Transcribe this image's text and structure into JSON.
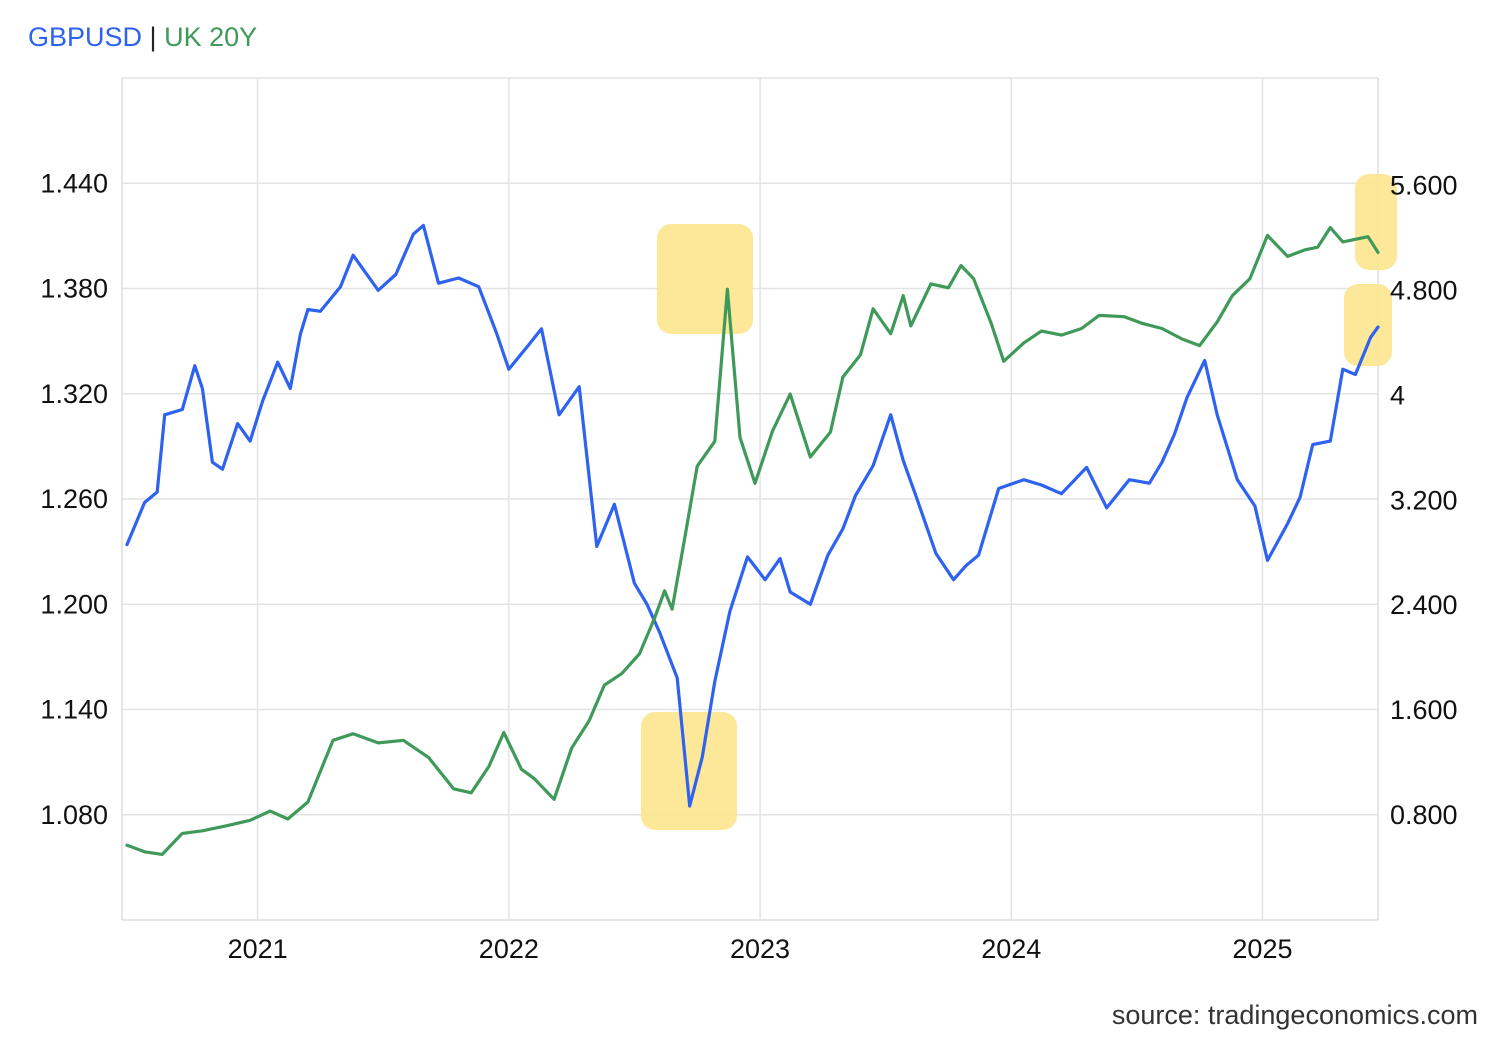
{
  "chart_data": {
    "type": "line",
    "title": "",
    "legend": {
      "placement": "top-left",
      "separator": "|",
      "entries": [
        {
          "label": "GBPUSD",
          "color": "#2e62f0"
        },
        {
          "label": "UK 20Y",
          "color": "#3f9a5a"
        }
      ]
    },
    "source_label": "source: tradingeconomics.com",
    "x_ticks": [
      "2021",
      "2022",
      "2023",
      "2024",
      "2025"
    ],
    "xlim": [
      2020.46,
      2025.46
    ],
    "y_left": {
      "ticks": [
        "1.080",
        "1.140",
        "1.200",
        "1.260",
        "1.320",
        "1.380",
        "1.440"
      ],
      "ylim": [
        1.02,
        1.5
      ]
    },
    "y_right": {
      "ticks": [
        "0.800",
        "1.600",
        "2.400",
        "3.200",
        "4",
        "4.800",
        "5.600"
      ],
      "ylim": [
        0.0,
        6.42
      ]
    },
    "grid": true,
    "highlights": [
      "around the October 2022 peak of UK 20Y and low of GBPUSD",
      "around the latest values of both series"
    ],
    "series": [
      {
        "name": "GBPUSD",
        "axis": "left",
        "color": "#2e62f0",
        "points": [
          [
            2020.48,
            1.234
          ],
          [
            2020.55,
            1.258
          ],
          [
            2020.6,
            1.264
          ],
          [
            2020.63,
            1.308
          ],
          [
            2020.7,
            1.311
          ],
          [
            2020.75,
            1.336
          ],
          [
            2020.78,
            1.323
          ],
          [
            2020.82,
            1.281
          ],
          [
            2020.86,
            1.277
          ],
          [
            2020.92,
            1.303
          ],
          [
            2020.97,
            1.293
          ],
          [
            2021.02,
            1.316
          ],
          [
            2021.08,
            1.338
          ],
          [
            2021.13,
            1.323
          ],
          [
            2021.17,
            1.354
          ],
          [
            2021.2,
            1.368
          ],
          [
            2021.25,
            1.367
          ],
          [
            2021.33,
            1.381
          ],
          [
            2021.38,
            1.399
          ],
          [
            2021.48,
            1.379
          ],
          [
            2021.55,
            1.388
          ],
          [
            2021.62,
            1.411
          ],
          [
            2021.66,
            1.416
          ],
          [
            2021.72,
            1.383
          ],
          [
            2021.8,
            1.386
          ],
          [
            2021.88,
            1.381
          ],
          [
            2021.95,
            1.355
          ],
          [
            2022.0,
            1.334
          ],
          [
            2022.08,
            1.348
          ],
          [
            2022.13,
            1.357
          ],
          [
            2022.2,
            1.308
          ],
          [
            2022.28,
            1.324
          ],
          [
            2022.35,
            1.233
          ],
          [
            2022.42,
            1.257
          ],
          [
            2022.5,
            1.212
          ],
          [
            2022.55,
            1.2
          ],
          [
            2022.6,
            1.184
          ],
          [
            2022.67,
            1.158
          ],
          [
            2022.72,
            1.085
          ],
          [
            2022.77,
            1.113
          ],
          [
            2022.82,
            1.156
          ],
          [
            2022.88,
            1.196
          ],
          [
            2022.95,
            1.227
          ],
          [
            2023.02,
            1.214
          ],
          [
            2023.08,
            1.226
          ],
          [
            2023.12,
            1.207
          ],
          [
            2023.2,
            1.2
          ],
          [
            2023.27,
            1.228
          ],
          [
            2023.33,
            1.243
          ],
          [
            2023.38,
            1.262
          ],
          [
            2023.45,
            1.279
          ],
          [
            2023.52,
            1.308
          ],
          [
            2023.57,
            1.282
          ],
          [
            2023.62,
            1.262
          ],
          [
            2023.7,
            1.229
          ],
          [
            2023.77,
            1.214
          ],
          [
            2023.82,
            1.222
          ],
          [
            2023.87,
            1.228
          ],
          [
            2023.95,
            1.266
          ],
          [
            2024.05,
            1.271
          ],
          [
            2024.12,
            1.268
          ],
          [
            2024.2,
            1.263
          ],
          [
            2024.3,
            1.278
          ],
          [
            2024.38,
            1.255
          ],
          [
            2024.47,
            1.271
          ],
          [
            2024.55,
            1.269
          ],
          [
            2024.6,
            1.281
          ],
          [
            2024.65,
            1.297
          ],
          [
            2024.7,
            1.318
          ],
          [
            2024.77,
            1.339
          ],
          [
            2024.82,
            1.308
          ],
          [
            2024.9,
            1.271
          ],
          [
            2024.97,
            1.256
          ],
          [
            2025.02,
            1.225
          ],
          [
            2025.1,
            1.246
          ],
          [
            2025.15,
            1.261
          ],
          [
            2025.2,
            1.291
          ],
          [
            2025.27,
            1.293
          ],
          [
            2025.32,
            1.334
          ],
          [
            2025.37,
            1.331
          ],
          [
            2025.43,
            1.352
          ],
          [
            2025.46,
            1.358
          ]
        ]
      },
      {
        "name": "UK 20Y",
        "axis": "right",
        "color": "#3f9a5a",
        "points": [
          [
            2020.48,
            0.57
          ],
          [
            2020.55,
            0.52
          ],
          [
            2020.62,
            0.5
          ],
          [
            2020.7,
            0.66
          ],
          [
            2020.78,
            0.68
          ],
          [
            2020.88,
            0.72
          ],
          [
            2020.97,
            0.76
          ],
          [
            2021.05,
            0.83
          ],
          [
            2021.12,
            0.77
          ],
          [
            2021.2,
            0.9
          ],
          [
            2021.3,
            1.37
          ],
          [
            2021.38,
            1.42
          ],
          [
            2021.48,
            1.35
          ],
          [
            2021.58,
            1.37
          ],
          [
            2021.68,
            1.24
          ],
          [
            2021.78,
            1.0
          ],
          [
            2021.85,
            0.97
          ],
          [
            2021.92,
            1.17
          ],
          [
            2021.98,
            1.43
          ],
          [
            2022.05,
            1.15
          ],
          [
            2022.1,
            1.08
          ],
          [
            2022.18,
            0.92
          ],
          [
            2022.25,
            1.31
          ],
          [
            2022.32,
            1.52
          ],
          [
            2022.38,
            1.79
          ],
          [
            2022.45,
            1.88
          ],
          [
            2022.52,
            2.03
          ],
          [
            2022.58,
            2.3
          ],
          [
            2022.62,
            2.51
          ],
          [
            2022.65,
            2.37
          ],
          [
            2022.7,
            2.91
          ],
          [
            2022.75,
            3.46
          ],
          [
            2022.82,
            3.65
          ],
          [
            2022.87,
            4.81
          ],
          [
            2022.92,
            3.68
          ],
          [
            2022.98,
            3.33
          ],
          [
            2023.05,
            3.73
          ],
          [
            2023.12,
            4.01
          ],
          [
            2023.2,
            3.53
          ],
          [
            2023.28,
            3.72
          ],
          [
            2023.33,
            4.14
          ],
          [
            2023.4,
            4.31
          ],
          [
            2023.45,
            4.66
          ],
          [
            2023.52,
            4.47
          ],
          [
            2023.57,
            4.76
          ],
          [
            2023.6,
            4.53
          ],
          [
            2023.68,
            4.85
          ],
          [
            2023.75,
            4.82
          ],
          [
            2023.8,
            4.99
          ],
          [
            2023.85,
            4.89
          ],
          [
            2023.92,
            4.55
          ],
          [
            2023.97,
            4.26
          ],
          [
            2024.05,
            4.4
          ],
          [
            2024.12,
            4.49
          ],
          [
            2024.2,
            4.46
          ],
          [
            2024.28,
            4.51
          ],
          [
            2024.35,
            4.61
          ],
          [
            2024.45,
            4.6
          ],
          [
            2024.52,
            4.55
          ],
          [
            2024.6,
            4.51
          ],
          [
            2024.68,
            4.43
          ],
          [
            2024.75,
            4.38
          ],
          [
            2024.82,
            4.56
          ],
          [
            2024.88,
            4.76
          ],
          [
            2024.95,
            4.89
          ],
          [
            2025.02,
            5.22
          ],
          [
            2025.1,
            5.06
          ],
          [
            2025.17,
            5.11
          ],
          [
            2025.22,
            5.13
          ],
          [
            2025.27,
            5.28
          ],
          [
            2025.32,
            5.17
          ],
          [
            2025.37,
            5.19
          ],
          [
            2025.42,
            5.21
          ],
          [
            2025.46,
            5.09
          ]
        ]
      }
    ]
  }
}
